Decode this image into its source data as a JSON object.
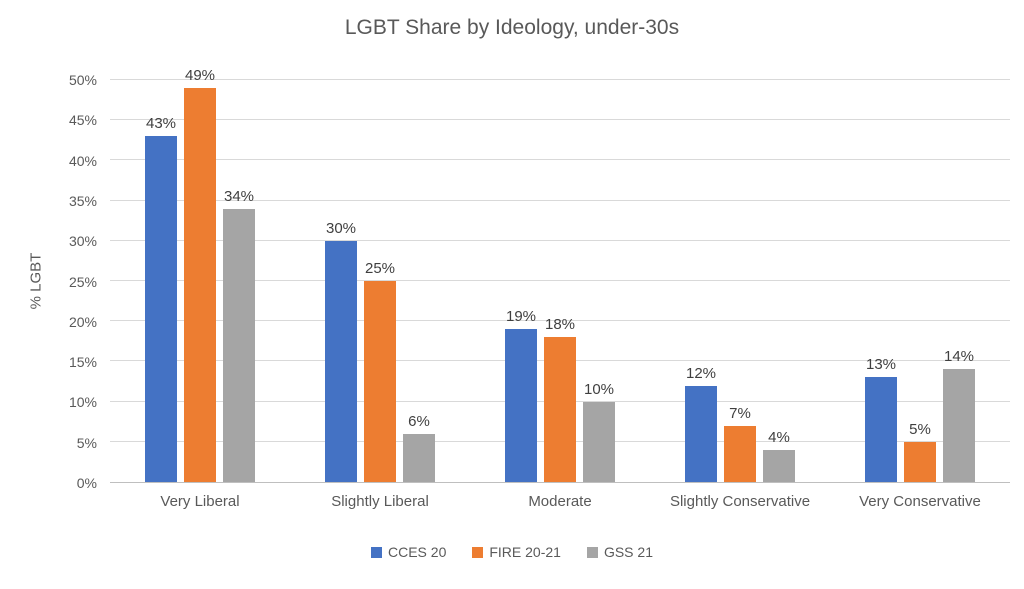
{
  "chart_data": {
    "type": "bar",
    "title": "LGBT Share by Ideology, under-30s",
    "xlabel": "",
    "ylabel": "% LGBT",
    "categories": [
      "Very Liberal",
      "Slightly Liberal",
      "Moderate",
      "Slightly Conservative",
      "Very Conservative"
    ],
    "series": [
      {
        "name": "CCES 20",
        "color": "#4472C4",
        "values": [
          43,
          30,
          19,
          12,
          13
        ]
      },
      {
        "name": "FIRE 20-21",
        "color": "#ED7D31",
        "values": [
          49,
          25,
          18,
          7,
          5
        ]
      },
      {
        "name": "GSS 21",
        "color": "#A5A5A5",
        "values": [
          34,
          6,
          10,
          4,
          14
        ]
      }
    ],
    "ylim": [
      0,
      50
    ],
    "ytick_step": 5,
    "value_suffix": "%",
    "grid": true,
    "data_labels": true,
    "legend_position": "bottom"
  },
  "colors": {
    "gridline": "#d9d9d9",
    "axis_line": "#bfbfbf",
    "tick_text": "#595959",
    "label_text": "#3f3f3f",
    "title_text": "#595959"
  }
}
